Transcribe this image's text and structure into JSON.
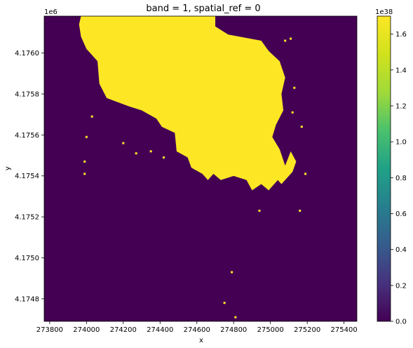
{
  "chart_data": {
    "type": "heatmap",
    "title": "band = 1, spatial_ref = 0",
    "xlabel": "x",
    "ylabel": "y",
    "xlim": [
      273770,
      275470
    ],
    "ylim": [
      4174690,
      4176180
    ],
    "x_ticks": [
      273800,
      274000,
      274200,
      274400,
      274600,
      274800,
      275000,
      275200,
      275400
    ],
    "y_ticks": [
      4174800,
      4175000,
      4175200,
      4175400,
      4175600,
      4175800,
      4176000
    ],
    "y_tick_labels": [
      "4.1748",
      "4.1750",
      "4.1752",
      "4.1754",
      "4.1756",
      "4.1758",
      "4.1760"
    ],
    "y_offset_label": "1e6",
    "colormap": "viridis",
    "colorbar": {
      "min": 0.0,
      "max": 1.7,
      "ticks": [
        0.0,
        0.2,
        0.4,
        0.6,
        0.8,
        1.0,
        1.2,
        1.4,
        1.6
      ],
      "tick_labels": [
        "0.0",
        "0.2",
        "0.4",
        "0.6",
        "0.8",
        "1.0",
        "1.2",
        "1.4",
        "1.6"
      ],
      "offset_label": "1e38"
    },
    "background_color": "#440154",
    "feature_color": "#fde725",
    "feature_value": 1.7e+38,
    "feature_outline": [
      [
        273970,
        4176180
      ],
      [
        274700,
        4176180
      ],
      [
        274700,
        4176130
      ],
      [
        274770,
        4176090
      ],
      [
        274950,
        4176060
      ],
      [
        274990,
        4176010
      ],
      [
        275050,
        4175960
      ],
      [
        275080,
        4175880
      ],
      [
        275060,
        4175800
      ],
      [
        275070,
        4175720
      ],
      [
        275030,
        4175650
      ],
      [
        275010,
        4175590
      ],
      [
        275050,
        4175530
      ],
      [
        275080,
        4175450
      ],
      [
        275110,
        4175520
      ],
      [
        275140,
        4175470
      ],
      [
        275120,
        4175420
      ],
      [
        275060,
        4175360
      ],
      [
        275040,
        4175380
      ],
      [
        274990,
        4175330
      ],
      [
        274950,
        4175360
      ],
      [
        274900,
        4175330
      ],
      [
        274870,
        4175380
      ],
      [
        274800,
        4175400
      ],
      [
        274730,
        4175380
      ],
      [
        274690,
        4175410
      ],
      [
        274660,
        4175380
      ],
      [
        274630,
        4175410
      ],
      [
        274570,
        4175440
      ],
      [
        274550,
        4175490
      ],
      [
        274490,
        4175520
      ],
      [
        274480,
        4175610
      ],
      [
        274410,
        4175640
      ],
      [
        274380,
        4175680
      ],
      [
        274300,
        4175720
      ],
      [
        274230,
        4175740
      ],
      [
        274170,
        4175760
      ],
      [
        274110,
        4175780
      ],
      [
        274070,
        4175850
      ],
      [
        274060,
        4175960
      ],
      [
        274000,
        4176020
      ],
      [
        273970,
        4176080
      ],
      [
        273960,
        4176140
      ]
    ],
    "feature_specks": [
      [
        275080,
        4176060
      ],
      [
        275110,
        4176070
      ],
      [
        275130,
        4175830
      ],
      [
        275120,
        4175710
      ],
      [
        275170,
        4175640
      ],
      [
        274030,
        4175690
      ],
      [
        274000,
        4175590
      ],
      [
        273990,
        4175470
      ],
      [
        274200,
        4175560
      ],
      [
        274270,
        4175510
      ],
      [
        274350,
        4175520
      ],
      [
        274420,
        4175490
      ],
      [
        274940,
        4175230
      ],
      [
        275160,
        4175230
      ],
      [
        274750,
        4174780
      ],
      [
        274790,
        4174930
      ],
      [
        274810,
        4174710
      ],
      [
        273990,
        4175410
      ],
      [
        275190,
        4175410
      ]
    ]
  }
}
